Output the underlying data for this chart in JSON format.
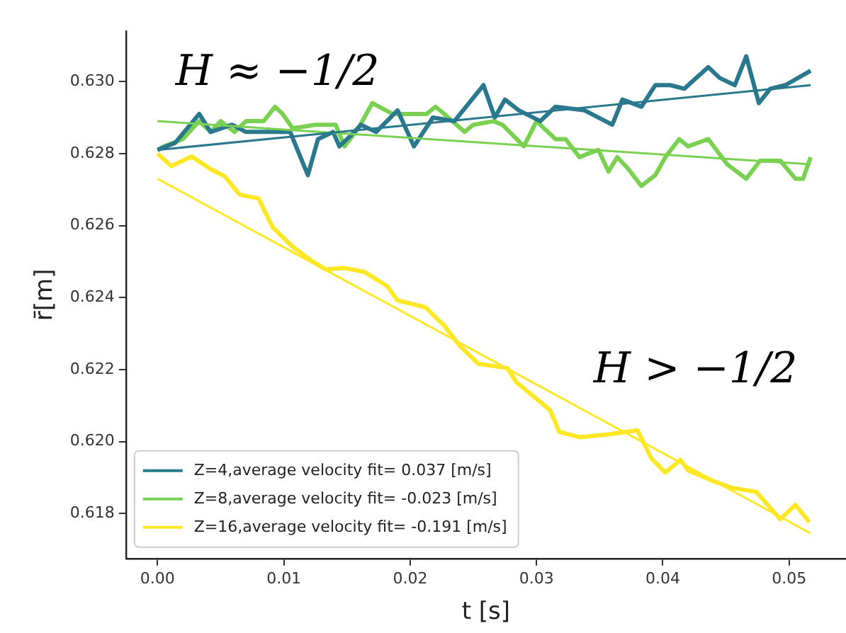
{
  "chart_data": {
    "type": "line",
    "xlabel": "t [s]",
    "ylabel": "r̄[m]",
    "annotations": [
      "H ≈ −1/2",
      "H > −1/2"
    ],
    "legend": "bottom left",
    "grid": false,
    "marker": "none",
    "line_style": "solid",
    "xlim": [
      -0.0025,
      0.0545
    ],
    "xticks": [
      {
        "value": 0,
        "label": "0.00"
      },
      0.01,
      0.02,
      0.03,
      0.04,
      0.05
    ],
    "ylim": [
      0.61675,
      0.6314
    ],
    "yticks": [
      {
        "value": 0.618,
        "label": "0.618"
      },
      {
        "value": 0.62,
        "label": "0.620"
      },
      {
        "value": 0.622,
        "label": "0.622"
      },
      {
        "value": 0.624,
        "label": "0.624"
      },
      {
        "value": 0.626,
        "label": "0.626"
      },
      {
        "value": 0.628,
        "label": "0.628"
      },
      {
        "value": 0.63,
        "label": "0.630"
      }
    ],
    "series": [
      {
        "name": "Z=4,average velocity fit= 0.037 [m/s]",
        "color": "#2a788e",
        "x": [
          0,
          0.0014,
          0.0033,
          0.0042,
          0.0059,
          0.007,
          0.0088,
          0.0105,
          0.0119,
          0.0127,
          0.0139,
          0.0144,
          0.0153,
          0.0161,
          0.0173,
          0.019,
          0.0203,
          0.0218,
          0.0235,
          0.0258,
          0.0267,
          0.0275,
          0.0286,
          0.0303,
          0.0315,
          0.0338,
          0.036,
          0.0368,
          0.0383,
          0.0394,
          0.0406,
          0.0417,
          0.0436,
          0.0445,
          0.0457,
          0.0466,
          0.0476,
          0.0485,
          0.0497,
          0.0517
        ],
        "values": [
          0.6281,
          0.6283,
          0.6291,
          0.6286,
          0.6288,
          0.6286,
          0.6286,
          0.6286,
          0.6274,
          0.6284,
          0.6286,
          0.6282,
          0.6285,
          0.6288,
          0.6286,
          0.6292,
          0.6282,
          0.629,
          0.6289,
          0.6299,
          0.629,
          0.6295,
          0.6292,
          0.6289,
          0.6293,
          0.6292,
          0.6288,
          0.6295,
          0.6293,
          0.6299,
          0.6299,
          0.6298,
          0.6304,
          0.6301,
          0.6299,
          0.6307,
          0.6294,
          0.6298,
          0.6299,
          0.6303
        ]
      },
      {
        "name": "Z=8,average velocity fit= -0.023 [m/s]",
        "color": "#7ad151",
        "x": [
          0,
          0.0005,
          0.002,
          0.0033,
          0.0042,
          0.005,
          0.0061,
          0.007,
          0.0084,
          0.0093,
          0.0099,
          0.0107,
          0.0125,
          0.0141,
          0.0148,
          0.0159,
          0.017,
          0.0186,
          0.0198,
          0.0213,
          0.022,
          0.0227,
          0.0243,
          0.025,
          0.0266,
          0.0273,
          0.029,
          0.03,
          0.0315,
          0.0323,
          0.0334,
          0.0341,
          0.0349,
          0.0357,
          0.0364,
          0.0372,
          0.0383,
          0.0394,
          0.0402,
          0.0413,
          0.042,
          0.0436,
          0.0451,
          0.0466,
          0.0477,
          0.0493,
          0.0505,
          0.0511,
          0.0517
        ],
        "values": [
          0.6281,
          0.6282,
          0.6284,
          0.6289,
          0.6286,
          0.6289,
          0.6286,
          0.6289,
          0.6289,
          0.6293,
          0.6291,
          0.6287,
          0.6288,
          0.6288,
          0.6282,
          0.6287,
          0.6294,
          0.6291,
          0.6291,
          0.6291,
          0.6293,
          0.6291,
          0.6286,
          0.6288,
          0.6289,
          0.6288,
          0.6282,
          0.6289,
          0.6284,
          0.6284,
          0.6279,
          0.628,
          0.6281,
          0.6275,
          0.6279,
          0.6276,
          0.6271,
          0.6274,
          0.6279,
          0.6284,
          0.6282,
          0.6284,
          0.6277,
          0.6273,
          0.6278,
          0.6278,
          0.6273,
          0.6273,
          0.6279
        ]
      },
      {
        "name": "Z=16,average velocity fit= -0.191 [m/s]",
        "color": "#fde725",
        "x": [
          0,
          0.0011,
          0.0027,
          0.0042,
          0.0053,
          0.0065,
          0.008,
          0.0091,
          0.0107,
          0.0122,
          0.0133,
          0.0148,
          0.0164,
          0.0182,
          0.019,
          0.0212,
          0.0227,
          0.0239,
          0.0254,
          0.0277,
          0.0284,
          0.0303,
          0.0311,
          0.0318,
          0.0334,
          0.0357,
          0.038,
          0.0391,
          0.0402,
          0.0414,
          0.042,
          0.044,
          0.0455,
          0.0474,
          0.0493,
          0.0505,
          0.0516
        ],
        "values": [
          0.628,
          0.62765,
          0.62792,
          0.62757,
          0.62737,
          0.62686,
          0.62675,
          0.62596,
          0.62541,
          0.62502,
          0.62478,
          0.62482,
          0.62471,
          0.62431,
          0.62392,
          0.62373,
          0.62322,
          0.62267,
          0.62216,
          0.62204,
          0.62165,
          0.6211,
          0.62086,
          0.62027,
          0.62012,
          0.6202,
          0.62031,
          0.61953,
          0.61914,
          0.61949,
          0.6192,
          0.6189,
          0.61871,
          0.6186,
          0.61784,
          0.61824,
          0.61776
        ]
      },
      {
        "color": "#2a788e",
        "x": [
          0,
          0.0517
        ],
        "values": [
          0.6281,
          0.6299
        ]
      },
      {
        "color": "#7ad151",
        "x": [
          0,
          0.0517
        ],
        "values": [
          0.6289,
          0.6277
        ]
      },
      {
        "color": "#fde725",
        "x": [
          0,
          0.0517
        ],
        "values": [
          0.6273,
          0.61745
        ]
      }
    ]
  }
}
